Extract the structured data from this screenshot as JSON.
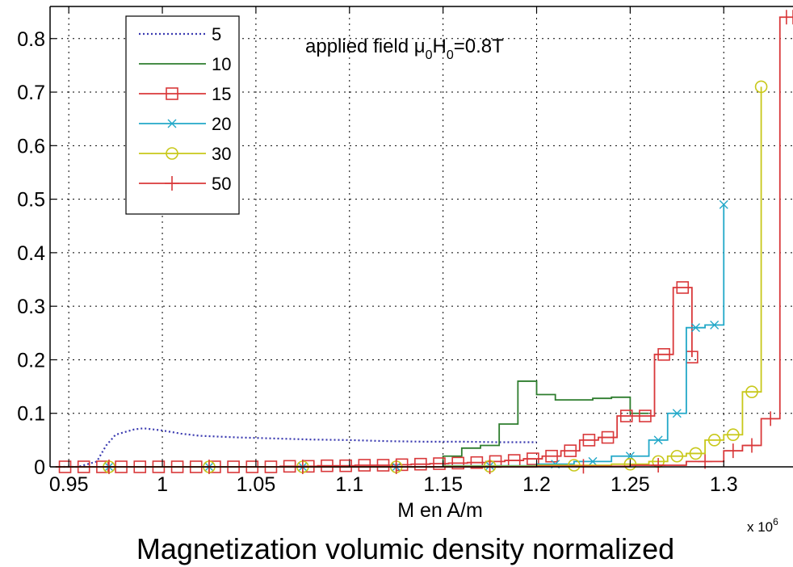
{
  "chart_data": {
    "type": "line",
    "title": "",
    "caption": "Magnetization volumic density normalized",
    "xlabel": "M en A/m",
    "x_exponent_label": "x 10",
    "x_exponent_power": "6",
    "ylabel": "",
    "xlim": [
      0.94,
      1.337
    ],
    "ylim": [
      0,
      0.86
    ],
    "grid": true,
    "legend_position": "top-left",
    "x_ticks": [
      0.95,
      1,
      1.05,
      1.1,
      1.15,
      1.2,
      1.25,
      1.3
    ],
    "x_tick_labels": [
      "0.95",
      "1",
      "1.05",
      "1.1",
      "1.15",
      "1.2",
      "1.25",
      "1.3"
    ],
    "y_ticks": [
      0,
      0.1,
      0.2,
      0.3,
      0.4,
      0.5,
      0.6,
      0.7,
      0.8
    ],
    "y_tick_labels": [
      "0",
      "0.1",
      "0.2",
      "0.3",
      "0.4",
      "0.5",
      "0.6",
      "0.7",
      "0.8"
    ],
    "annotation": {
      "text_prefix": "applied field μ",
      "sub1": "0",
      "text_mid": "H",
      "sub2": "0",
      "text_suffix": "=0.8T"
    },
    "series": [
      {
        "name": "5",
        "color": "#3a3ab0",
        "dash": "dotted",
        "marker": "none",
        "x": [
          0.945,
          0.955,
          0.965,
          0.97,
          0.975,
          0.98,
          0.985,
          0.99,
          1.0,
          1.01,
          1.02,
          1.04,
          1.06,
          1.08,
          1.1,
          1.12,
          1.14,
          1.16,
          1.18,
          1.2
        ],
        "y": [
          0.0,
          0.0,
          0.01,
          0.04,
          0.06,
          0.065,
          0.07,
          0.072,
          0.068,
          0.062,
          0.058,
          0.055,
          0.053,
          0.051,
          0.05,
          0.048,
          0.047,
          0.047,
          0.046,
          0.046
        ]
      },
      {
        "name": "10",
        "color": "#2e7d2e",
        "dash": "solid",
        "marker": "none",
        "step": true,
        "x": [
          0.943,
          1.15,
          1.16,
          1.17,
          1.18,
          1.19,
          1.2,
          1.21,
          1.22,
          1.23,
          1.24,
          1.25,
          1.26
        ],
        "y": [
          0.0,
          0.02,
          0.035,
          0.04,
          0.08,
          0.16,
          0.135,
          0.125,
          0.125,
          0.128,
          0.13,
          0.1,
          0.1
        ]
      },
      {
        "name": "15",
        "color": "#d9383a",
        "dash": "solid",
        "marker": "square",
        "step": true,
        "x": [
          0.943,
          0.953,
          0.963,
          0.973,
          0.983,
          0.993,
          1.003,
          1.013,
          1.023,
          1.033,
          1.043,
          1.053,
          1.063,
          1.073,
          1.083,
          1.093,
          1.103,
          1.113,
          1.123,
          1.133,
          1.143,
          1.153,
          1.163,
          1.173,
          1.183,
          1.193,
          1.203,
          1.213,
          1.223,
          1.233,
          1.243,
          1.253,
          1.263,
          1.273,
          1.283
        ],
        "y": [
          0,
          0,
          0,
          0,
          0,
          0,
          0,
          0,
          0,
          0,
          0,
          0,
          0.001,
          0.001,
          0.002,
          0.002,
          0.003,
          0.003,
          0.004,
          0.005,
          0.006,
          0.007,
          0.008,
          0.01,
          0.012,
          0.015,
          0.02,
          0.03,
          0.05,
          0.055,
          0.095,
          0.095,
          0.21,
          0.335,
          0.205
        ]
      },
      {
        "name": "20",
        "color": "#22a8c8",
        "dash": "solid",
        "marker": "x",
        "step": true,
        "x": [
          0.943,
          1.0,
          1.05,
          1.1,
          1.15,
          1.2,
          1.22,
          1.24,
          1.26,
          1.27,
          1.28,
          1.29,
          1.3
        ],
        "y": [
          0,
          0,
          0,
          0,
          0.002,
          0.005,
          0.01,
          0.02,
          0.05,
          0.1,
          0.26,
          0.265,
          0.49
        ]
      },
      {
        "name": "30",
        "color": "#c8c81a",
        "dash": "solid",
        "marker": "circle",
        "step": true,
        "x": [
          0.943,
          1.0,
          1.05,
          1.1,
          1.15,
          1.2,
          1.24,
          1.26,
          1.27,
          1.28,
          1.29,
          1.3,
          1.31,
          1.32
        ],
        "y": [
          0,
          0,
          0,
          0,
          0.001,
          0.003,
          0.005,
          0.01,
          0.02,
          0.025,
          0.05,
          0.06,
          0.14,
          0.71
        ]
      },
      {
        "name": "50",
        "color": "#d9383a",
        "dash": "solid",
        "marker": "plus",
        "step": true,
        "x": [
          0.943,
          1.0,
          1.05,
          1.1,
          1.15,
          1.2,
          1.25,
          1.28,
          1.3,
          1.31,
          1.32,
          1.33,
          1.337
        ],
        "y": [
          0,
          0,
          0,
          0,
          0,
          0.001,
          0.003,
          0.01,
          0.03,
          0.04,
          0.09,
          0.84,
          0.84
        ]
      }
    ]
  }
}
